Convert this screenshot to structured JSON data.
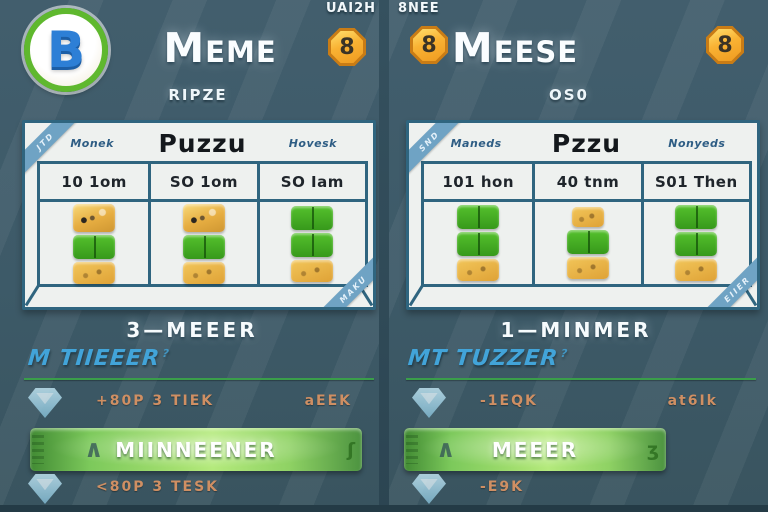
{
  "logo_letter": "B",
  "colors": {
    "background": "#3d5a68",
    "table_border": "#2f657f",
    "accent_green": "#3a9e4a",
    "accent_blue": "#42a4d9",
    "accent_orange": "#cf8f63",
    "badge_gold": "#f9b233",
    "button_green": "#a5e070"
  },
  "panels": [
    {
      "corner_label": "UAI2H",
      "corner_badge": "8",
      "title": "Meme",
      "subtitle": "RIPZE",
      "table": {
        "ribbon_top": "JTD",
        "ribbon_bottom": "MAKU",
        "headers": [
          "Monek",
          "Puzzu",
          "Hovesk"
        ],
        "values": [
          "10 1om",
          "SO 1om",
          "SO Iam"
        ],
        "blocks": [
          [
            "yellow-face",
            "green",
            "yellow"
          ],
          [
            "yellow-face",
            "green",
            "yellow"
          ],
          [
            "green",
            "green",
            "yellow"
          ]
        ]
      },
      "result": "3—MEEER",
      "section": {
        "title": "M TIIEEER",
        "suffix": "?"
      },
      "rows": [
        {
          "icon": "gem",
          "text": "+80P 3 TIEK",
          "right": "aEEK"
        }
      ],
      "button": {
        "chevron": "∧",
        "label": "MIINNEENER",
        "side_icon": "ʃ"
      },
      "rows_below": [
        {
          "icon": "gem",
          "text": "<80P 3 TESK"
        }
      ]
    },
    {
      "corner_label": "8NEE",
      "corner_badge": "8",
      "title": "Meese",
      "far_badge": "8",
      "subtitle": "OS0",
      "table": {
        "ribbon_top": "SND",
        "ribbon_bottom": "EIIER",
        "headers": [
          "Maneds",
          "Pzzu",
          "Nonyeds"
        ],
        "values": [
          "101 hon",
          "40 tnm",
          "S01 Then"
        ],
        "blocks": [
          [
            "green",
            "green",
            "yellow"
          ],
          [
            "yellow-small",
            "green",
            "yellow"
          ],
          [
            "green",
            "green",
            "yellow"
          ]
        ]
      },
      "result": "1—MINMER",
      "section": {
        "title": "MT TUZZER",
        "suffix": "?"
      },
      "rows": [
        {
          "icon": "gem",
          "text": "-1EQK",
          "right": "at6Ik"
        }
      ],
      "button": {
        "chevron": "∧",
        "label": "MEEER",
        "side_icon": "ʒ"
      },
      "rows_below": [
        {
          "icon": "gem",
          "text": "-E9K"
        }
      ]
    }
  ]
}
